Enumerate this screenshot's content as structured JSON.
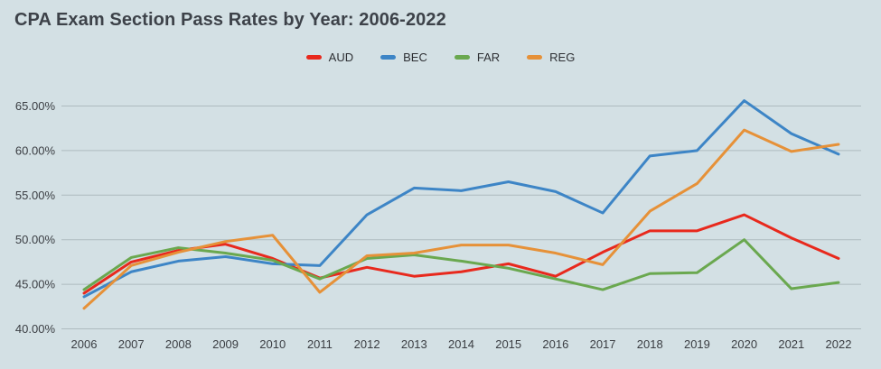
{
  "style": {
    "background": "#d3e0e4",
    "gridline_color": "#aebbbf",
    "tick_color": "#3a3d42",
    "title_color": "#3d4249"
  },
  "header": {
    "title": "CPA Exam Section Pass Rates by Year: 2006-2022"
  },
  "chart_data": {
    "type": "line",
    "title": "CPA Exam Section Pass Rates by Year: 2006-2022",
    "x": [
      2006,
      2007,
      2008,
      2009,
      2010,
      2011,
      2012,
      2013,
      2014,
      2015,
      2016,
      2017,
      2018,
      2019,
      2020,
      2021,
      2022
    ],
    "series": [
      {
        "name": "AUD",
        "color": "#e8291d",
        "values": [
          44.0,
          47.5,
          48.8,
          49.5,
          47.9,
          45.7,
          46.9,
          45.9,
          46.4,
          47.3,
          45.9,
          48.6,
          51.0,
          51.0,
          52.8,
          50.2,
          47.9
        ]
      },
      {
        "name": "BEC",
        "color": "#3d85c6",
        "values": [
          43.6,
          46.4,
          47.6,
          48.1,
          47.3,
          47.1,
          52.8,
          55.8,
          55.5,
          56.5,
          55.4,
          53.0,
          59.4,
          60.0,
          65.6,
          61.9,
          59.6
        ]
      },
      {
        "name": "FAR",
        "color": "#6aa84f",
        "values": [
          44.4,
          48.0,
          49.1,
          48.5,
          47.7,
          45.6,
          47.9,
          48.3,
          47.6,
          46.8,
          45.6,
          44.4,
          46.2,
          46.3,
          50.0,
          44.5,
          45.2
        ]
      },
      {
        "name": "REG",
        "color": "#e69138",
        "values": [
          42.3,
          47.1,
          48.6,
          49.8,
          50.5,
          44.1,
          48.2,
          48.5,
          49.4,
          49.4,
          48.5,
          47.2,
          53.2,
          56.3,
          62.3,
          59.9,
          60.7
        ]
      }
    ],
    "ylim": [
      40,
      65
    ],
    "yticks": [
      {
        "value": 40,
        "label": "40.00%"
      },
      {
        "value": 45,
        "label": "45.00%"
      },
      {
        "value": 50,
        "label": "50.00%"
      },
      {
        "value": 55,
        "label": "55.00%"
      },
      {
        "value": 60,
        "label": "60.00%"
      },
      {
        "value": 65,
        "label": "65.00%"
      }
    ],
    "xlabel": "",
    "ylabel": "",
    "grid": true,
    "legend_position": "top"
  }
}
